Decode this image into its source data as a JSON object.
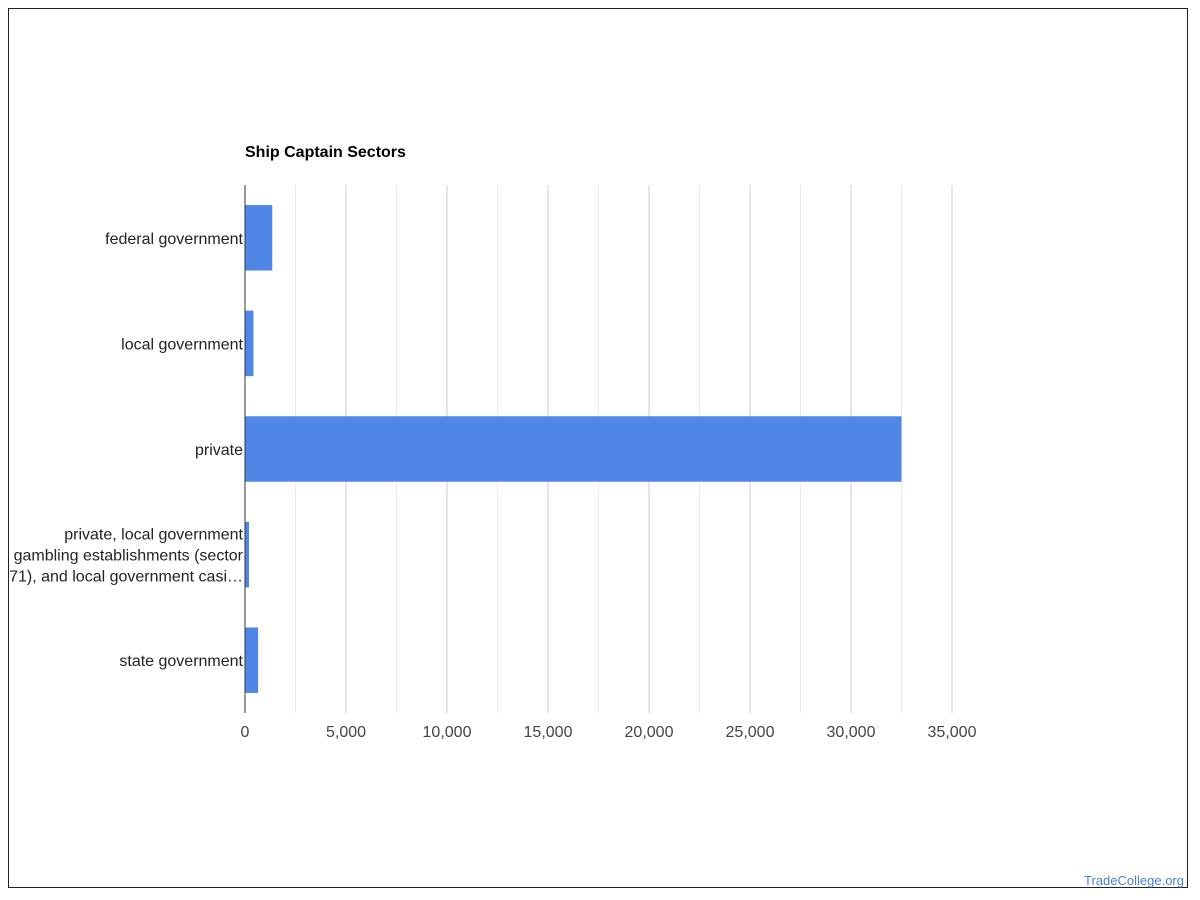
{
  "chart_data": {
    "type": "bar",
    "orientation": "horizontal",
    "title": "Ship Captain Sectors",
    "xlabel": "",
    "ylabel": "",
    "categories": [
      [
        "federal government"
      ],
      [
        "local government"
      ],
      [
        "private"
      ],
      [
        "private, local government",
        "gambling establishments (sector",
        "71), and local government casi…"
      ],
      [
        "state government"
      ]
    ],
    "values": [
      1350,
      420,
      32500,
      200,
      650
    ],
    "xlim": [
      0,
      35000
    ],
    "ticks": [
      0,
      5000,
      10000,
      15000,
      20000,
      25000,
      30000,
      35000
    ],
    "tick_labels": [
      "0",
      "5,000",
      "10,000",
      "15,000",
      "20,000",
      "25,000",
      "30,000",
      "35,000"
    ],
    "grid": true,
    "legend": "none"
  },
  "colors": {
    "bar": "#5086e5",
    "grid_major": "#cccccc",
    "grid_minor": "#ebebeb",
    "axis": "#333333",
    "watermark": "#4a7fd6"
  },
  "watermark": "TradeCollege.org"
}
